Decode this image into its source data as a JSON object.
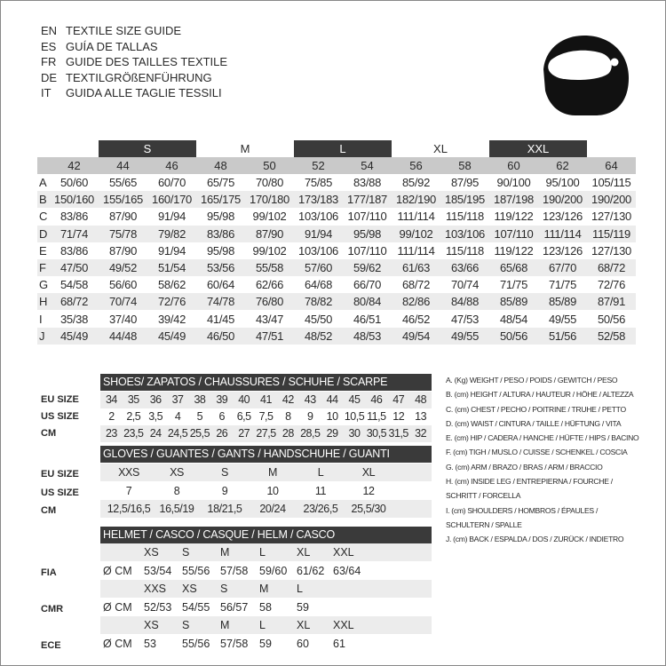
{
  "title_lines": [
    {
      "code": "EN",
      "text": "TEXTILE SIZE GUIDE"
    },
    {
      "code": "ES",
      "text": "GUÍA DE TALLAS"
    },
    {
      "code": "FR",
      "text": "GUIDE DES TAILLES TEXTILE"
    },
    {
      "code": "DE",
      "text": "TEXTILGRÖßENFÜHRUNG"
    },
    {
      "code": "IT",
      "text": "GUIDA ALLE TAGLIE TESSILI"
    }
  ],
  "icon": "helmet-icon",
  "textile": {
    "size_bands": [
      {
        "label": "S",
        "style": "dark"
      },
      {
        "label": "M",
        "style": "light"
      },
      {
        "label": "L",
        "style": "dark"
      },
      {
        "label": "XL",
        "style": "light"
      },
      {
        "label": "XXL",
        "style": "dark"
      }
    ],
    "sizes": [
      "42",
      "44",
      "46",
      "48",
      "50",
      "52",
      "54",
      "56",
      "58",
      "60",
      "62",
      "64"
    ],
    "rows": [
      {
        "key": "A",
        "values": [
          "50/60",
          "55/65",
          "60/70",
          "65/75",
          "70/80",
          "75/85",
          "83/88",
          "85/92",
          "87/95",
          "90/100",
          "95/100",
          "105/115"
        ]
      },
      {
        "key": "B",
        "values": [
          "150/160",
          "155/165",
          "160/170",
          "165/175",
          "170/180",
          "173/183",
          "177/187",
          "182/190",
          "185/195",
          "187/198",
          "190/200",
          "190/200"
        ]
      },
      {
        "key": "C",
        "values": [
          "83/86",
          "87/90",
          "91/94",
          "95/98",
          "99/102",
          "103/106",
          "107/110",
          "111/114",
          "115/118",
          "119/122",
          "123/126",
          "127/130"
        ]
      },
      {
        "key": "D",
        "values": [
          "71/74",
          "75/78",
          "79/82",
          "83/86",
          "87/90",
          "91/94",
          "95/98",
          "99/102",
          "103/106",
          "107/110",
          "111/114",
          "115/119"
        ]
      },
      {
        "key": "E",
        "values": [
          "83/86",
          "87/90",
          "91/94",
          "95/98",
          "99/102",
          "103/106",
          "107/110",
          "111/114",
          "115/118",
          "119/122",
          "123/126",
          "127/130"
        ]
      },
      {
        "key": "F",
        "values": [
          "47/50",
          "49/52",
          "51/54",
          "53/56",
          "55/58",
          "57/60",
          "59/62",
          "61/63",
          "63/66",
          "65/68",
          "67/70",
          "68/72"
        ]
      },
      {
        "key": "G",
        "values": [
          "54/58",
          "56/60",
          "58/62",
          "60/64",
          "62/66",
          "64/68",
          "66/70",
          "68/72",
          "70/74",
          "71/75",
          "71/75",
          "72/76"
        ]
      },
      {
        "key": "H",
        "values": [
          "68/72",
          "70/74",
          "72/76",
          "74/78",
          "76/80",
          "78/82",
          "80/84",
          "82/86",
          "84/88",
          "85/89",
          "85/89",
          "87/91"
        ]
      },
      {
        "key": "I",
        "values": [
          "35/38",
          "37/40",
          "39/42",
          "41/45",
          "43/47",
          "45/50",
          "46/51",
          "46/52",
          "47/53",
          "48/54",
          "49/55",
          "50/56"
        ]
      },
      {
        "key": "J",
        "values": [
          "45/49",
          "44/48",
          "45/49",
          "46/50",
          "47/51",
          "48/52",
          "48/53",
          "49/54",
          "49/55",
          "50/56",
          "51/56",
          "52/58"
        ]
      }
    ]
  },
  "shoes": {
    "title": "SHOES/ ZAPATOS / CHAUSSURES / SCHUHE / SCARPE",
    "rows": [
      {
        "label": "EU SIZE",
        "values": [
          "34",
          "35",
          "36",
          "37",
          "38",
          "39",
          "40",
          "41",
          "42",
          "43",
          "44",
          "45",
          "46",
          "47",
          "48"
        ]
      },
      {
        "label": "US SIZE",
        "values": [
          "2",
          "2,5",
          "3,5",
          "4",
          "5",
          "6",
          "6,5",
          "7,5",
          "8",
          "9",
          "10",
          "10,5",
          "11,5",
          "12",
          "13"
        ]
      },
      {
        "label": "CM",
        "values": [
          "23",
          "23,5",
          "24",
          "24,5",
          "25,5",
          "26",
          "27",
          "27,5",
          "28",
          "28,5",
          "29",
          "30",
          "30,5",
          "31,5",
          "32"
        ]
      }
    ]
  },
  "gloves": {
    "title": "GLOVES / GUANTES / GANTS / HANDSCHUHE / GUANTI",
    "rows": [
      {
        "label": "EU SIZE",
        "values": [
          "XXS",
          "XS",
          "S",
          "M",
          "L",
          "XL"
        ]
      },
      {
        "label": "US SIZE",
        "values": [
          "7",
          "8",
          "9",
          "10",
          "11",
          "12"
        ]
      },
      {
        "label": "CM",
        "values": [
          "12,5/16,5",
          "16,5/19",
          "18/21,5",
          "20/24",
          "23/26,5",
          "25,5/30"
        ]
      }
    ]
  },
  "helmet": {
    "title": "HELMET / CASCO / CASQUE / HELM / CASCO",
    "unit": "Ø CM",
    "groups": [
      {
        "label": "FIA",
        "sizes": [
          "XS",
          "S",
          "M",
          "L",
          "XL",
          "XXL"
        ],
        "values": [
          "53/54",
          "55/56",
          "57/58",
          "59/60",
          "61/62",
          "63/64"
        ]
      },
      {
        "label": "CMR",
        "sizes": [
          "XXS",
          "XS",
          "S",
          "M",
          "L"
        ],
        "values": [
          "52/53",
          "54/55",
          "56/57",
          "58",
          "59"
        ]
      },
      {
        "label": "ECE",
        "sizes": [
          "XS",
          "S",
          "M",
          "L",
          "XL",
          "XXL"
        ],
        "values": [
          "53",
          "55/56",
          "57/58",
          "59",
          "60",
          "61"
        ]
      }
    ]
  },
  "legend": [
    "A. (Kg) WEIGHT / PESO / POIDS / GEWITCH / PESO",
    "B. (cm) HEIGHT / ALTURA / HAUTEUR / HÖHE / ALTEZZA",
    "C. (cm) CHEST / PECHO / POITRINE / TRUHE / PETTO",
    "D. (cm) WAIST / CINTURA / TAILLE / HÜFTUNG / VITA",
    "E. (cm) HIP / CADERA / HANCHE / HÜFTE / HIPS /  BACINO",
    "F.  (cm) TIGH / MUSLO / CUISSE / SCHENKEL / COSCIA",
    "G. (cm) ARM  / BRAZO / BRAS / ARM / BRACCIO",
    "H. (cm) INSIDE LEG / ENTREPIERNA / FOURCHE /",
    "SCHRITT / FORCELLA",
    "I.  (cm) SHOULDERS / HOMBROS / ÉPAULES /",
    "SCHULTERN / SPALLE",
    "J. (cm) BACK / ESPALDA / DOS / ZURÜCK / INDIETRO"
  ]
}
